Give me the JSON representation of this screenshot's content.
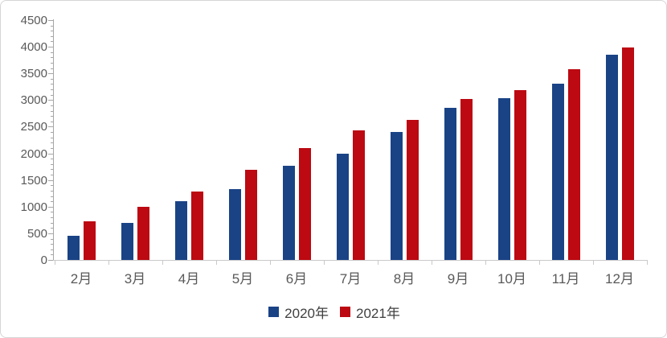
{
  "chart_data": {
    "type": "bar",
    "title": "",
    "categories": [
      "2月",
      "3月",
      "4月",
      "5月",
      "6月",
      "7月",
      "8月",
      "9月",
      "10月",
      "11月",
      "12月"
    ],
    "series": [
      {
        "name": "2020年",
        "color": "#1a4386",
        "values": [
          450,
          700,
          1100,
          1330,
          1760,
          2000,
          2400,
          2850,
          3040,
          3310,
          3850
        ]
      },
      {
        "name": "2021年",
        "color": "#bc0912",
        "values": [
          730,
          990,
          1290,
          1690,
          2100,
          2430,
          2630,
          3020,
          3190,
          3580,
          3980
        ]
      }
    ],
    "xlabel": "",
    "ylabel": "",
    "ylim": [
      0,
      4500
    ],
    "y_major_step": 500,
    "y_minor_step": 100,
    "y_tick_labels": [
      "0",
      "500",
      "1000",
      "1500",
      "2000",
      "2500",
      "3000",
      "3500",
      "4000",
      "4500"
    ],
    "grid": false,
    "legend_position": "bottom-center"
  },
  "colors": {
    "axis_line": "#a6a6a6",
    "baseline": "#c9c9c9",
    "tick_label": "#595959",
    "legend_text": "#3f3f3f",
    "panel_border": "#d5d5d5",
    "background": "#ffffff"
  }
}
